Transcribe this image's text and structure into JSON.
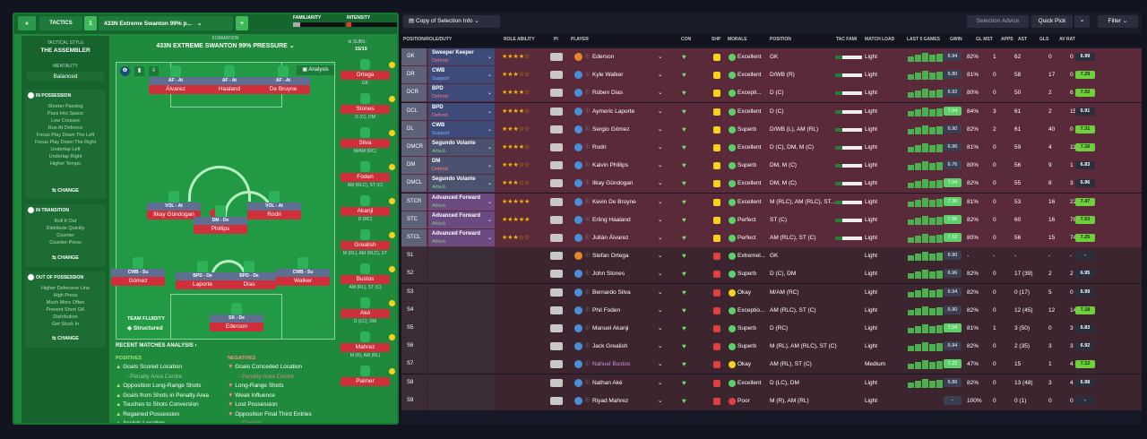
{
  "topbar": {
    "back_icon": "«",
    "tactics_label": "TACTICS",
    "tactic_number": "1",
    "tactic_name": "433N Extreme Swanton 99% p...",
    "add_label": "+",
    "familiarity_label": "FAMILIARITY",
    "intensity_label": "INTENSITY"
  },
  "sidebar": {
    "tactical_style_label": "TACTICAL STYLE",
    "style_value": "THE ASSEMBLER",
    "mentality_label": "MENTALITY",
    "mentality_value": "Balanced",
    "in_possession": {
      "title": "IN POSSESSION",
      "items": [
        "Shorter Passing",
        "Pass Into Space",
        "Low Crosses",
        "Run At Defence",
        "Focus Play Down The Left",
        "Focus Play Down The Right",
        "Underlap Left",
        "Underlap Right",
        "Higher Tempo"
      ],
      "change": "CHANGE"
    },
    "in_transition": {
      "title": "IN TRANSITION",
      "items": [
        "Roll It Out",
        "Distribute Quickly",
        "Counter",
        "Counter-Press"
      ],
      "change": "CHANGE"
    },
    "out_of_possession": {
      "title": "OUT OF POSSESSION",
      "items": [
        "Higher Defensive Line",
        "High Press",
        "Much More Often",
        "Prevent Short GK",
        "Distribution",
        "Get Stuck In"
      ],
      "change": "CHANGE"
    }
  },
  "formation": {
    "label": "FORMATION",
    "name": "433N EXTREME SWANTON 99% PRESSURE",
    "subs_label": "SUBS:",
    "subs_value": "15/15",
    "analysis_label": "Analysis",
    "team_fluidity_label": "TEAM FLUIDITY",
    "team_fluidity_value": "Structured",
    "players": [
      {
        "role": "AF - At",
        "name": "Álvarez"
      },
      {
        "role": "AF - At",
        "name": "Haaland"
      },
      {
        "role": "AF - At",
        "name": "De Bruyne"
      },
      {
        "role": "VOL - At",
        "name": "Ilkay Gündogan"
      },
      {
        "role": "DM - De",
        "name": "Phillips"
      },
      {
        "role": "VOL - At",
        "name": "Rodri"
      },
      {
        "role": "CWB - Su",
        "name": "Gómez"
      },
      {
        "role": "BPD - De",
        "name": "Laporte"
      },
      {
        "role": "BPD - De",
        "name": "Dias"
      },
      {
        "role": "CWB - Su",
        "name": "Walker"
      },
      {
        "role": "SK - De",
        "name": "Ederson"
      }
    ],
    "subs": [
      {
        "name": "Ortega",
        "pos": "GK"
      },
      {
        "name": "Stones",
        "pos": "D (C), DM"
      },
      {
        "name": "Silva",
        "pos": "M/AM (RC)"
      },
      {
        "name": "Foden",
        "pos": "AM (RLC), ST (C)"
      },
      {
        "name": "Akanji",
        "pos": "D (RC)"
      },
      {
        "name": "Grealish",
        "pos": "M (RL), AM (RLC), ST"
      },
      {
        "name": "Bustos",
        "pos": "AM (RL), ST (C)"
      },
      {
        "name": "Aké",
        "pos": "D (LC), DM"
      },
      {
        "name": "Mahrez",
        "pos": "M (R), AM (RL)"
      },
      {
        "name": "Palmer",
        "pos": ""
      }
    ]
  },
  "analysis": {
    "title": "RECENT MATCHES ANALYSIS ›",
    "positives_label": "POSITIVES",
    "negatives_label": "NEGATIVES",
    "positives": [
      "Goals Scored Location",
      "- Penalty Area Centre",
      "Opposition Long-Range Shots",
      "Goals from Shots in Penalty Area",
      "Touches to Shots Conversion",
      "Regained Possession",
      "Assists Location"
    ],
    "negatives": [
      "Goals Conceded Location",
      "- Penalty Area Centre",
      "Long-Range Shots",
      "Weak Influence",
      "Lost Possession",
      "Opposition Final Third Entries",
      "- Central"
    ]
  },
  "right_top": {
    "copy_label": "Copy of Selection Info",
    "selection_advice": "Selection Advice",
    "quick_pick": "Quick Pick",
    "filter": "Filter"
  },
  "columns": [
    "POSITION/ROLE/DUTY",
    "ROLE ABILITY",
    "PI",
    "PLAYER",
    "CON",
    "SHP",
    "MORALE",
    "POSITION",
    "TAC FAMI",
    "MATCH LOAD",
    "LAST 5 GAMES",
    "GWIN",
    "GL MST",
    "APPS",
    "AST",
    "GLS",
    "AV RAT"
  ],
  "rows": [
    {
      "pos": "GK",
      "role": "Sweeper Keeper",
      "duty": "Defend",
      "stars": "★★★★☆",
      "player": "Ederson",
      "morale": "Excellent",
      "position": "GK",
      "load": "Light",
      "last": "6.94",
      "gwin": "82%",
      "glmst": "1",
      "apps": "62",
      "ast": "0",
      "gls": "0",
      "av": "6.99"
    },
    {
      "pos": "DR",
      "role": "CWB",
      "duty": "Support",
      "stars": "★★★☆☆",
      "player": "Kyle Walker",
      "morale": "Excellent",
      "position": "D/WB (R)",
      "load": "Light",
      "last": "6.80",
      "gwin": "81%",
      "glmst": "0",
      "apps": "58",
      "ast": "17",
      "gls": "0",
      "av": "7.29"
    },
    {
      "pos": "DCR",
      "role": "BPD",
      "duty": "Defend",
      "stars": "★★★★☆",
      "player": "Rúben Dias",
      "morale": "Excepti...",
      "position": "D (C)",
      "load": "Light",
      "last": "6.92",
      "gwin": "80%",
      "glmst": "0",
      "apps": "50",
      "ast": "2",
      "gls": "6",
      "av": "7.02"
    },
    {
      "pos": "DCL",
      "role": "BPD",
      "duty": "Defend",
      "stars": "★★★★☆",
      "player": "Aymeric Laporte",
      "morale": "Excellent",
      "position": "D (C)",
      "load": "Light",
      "last": "7.04",
      "gwin": "84%",
      "glmst": "3",
      "apps": "61",
      "ast": "2",
      "gls": "15",
      "av": "6.91"
    },
    {
      "pos": "DL",
      "role": "CWB",
      "duty": "Support",
      "stars": "★★★☆☆",
      "player": "Sergio Gómez",
      "morale": "Superb",
      "position": "D/WB (L), AM (RL)",
      "load": "Light",
      "last": "6.90",
      "gwin": "82%",
      "glmst": "2",
      "apps": "61",
      "ast": "40",
      "gls": "0",
      "av": "7.31"
    },
    {
      "pos": "DMCR",
      "role": "Segundo Volante",
      "duty": "Attack",
      "stars": "★★★★☆",
      "player": "Rodri",
      "morale": "Excellent",
      "position": "D (C), DM, M (C)",
      "load": "Light",
      "last": "6.96",
      "gwin": "81%",
      "glmst": "0",
      "apps": "59",
      "ast": "4",
      "gls": "11",
      "av": "7.16"
    },
    {
      "pos": "DM",
      "role": "DM",
      "duty": "Defend",
      "stars": "★★★☆☆",
      "player": "Kalvin Phillips",
      "morale": "Superb",
      "position": "DM, M (C)",
      "load": "Light",
      "last": "6.76",
      "gwin": "80%",
      "glmst": "0",
      "apps": "56",
      "ast": "9",
      "gls": "1",
      "av": "6.83"
    },
    {
      "pos": "DMCL",
      "role": "Segundo Volante",
      "duty": "Attack",
      "stars": "★★★☆☆",
      "player": "Ilkay Gündogan",
      "morale": "Excellent",
      "position": "DM, M (C)",
      "load": "Light",
      "last": "7.04",
      "gwin": "82%",
      "glmst": "0",
      "apps": "55",
      "ast": "8",
      "gls": "3",
      "av": "6.96"
    },
    {
      "pos": "STCR",
      "role": "Advanced Forward",
      "duty": "Attack",
      "stars": "★★★★★",
      "player": "Kevin De Bruyne",
      "morale": "Excellent",
      "position": "M (RLC), AM (RLC), ST...",
      "load": "Light",
      "last": "7.30",
      "gwin": "81%",
      "glmst": "0",
      "apps": "53",
      "ast": "16",
      "gls": "22",
      "av": "7.47"
    },
    {
      "pos": "STC",
      "role": "Advanced Forward",
      "duty": "Attack",
      "stars": "★★★★★",
      "player": "Erling Haaland",
      "morale": "Perfect",
      "position": "ST (C)",
      "load": "Light",
      "last": "7.66",
      "gwin": "82%",
      "glmst": "0",
      "apps": "60",
      "ast": "16",
      "gls": "78",
      "av": "7.63"
    },
    {
      "pos": "STCL",
      "role": "Advanced Forward",
      "duty": "Attack",
      "stars": "★★★☆☆",
      "player": "Julián Álvarez",
      "morale": "Perfect",
      "position": "AM (RLC), ST (C)",
      "load": "Light",
      "last": "7.12",
      "gwin": "80%",
      "glmst": "0",
      "apps": "56",
      "ast": "15",
      "gls": "74",
      "av": "7.25"
    },
    {
      "pos": "S1",
      "role": "",
      "duty": "",
      "stars": "",
      "player": "Stefan Ortega",
      "morale": "Extremel...",
      "position": "GK",
      "load": "Light",
      "last": "6.90",
      "gwin": "-",
      "glmst": "-",
      "apps": "-",
      "ast": "-",
      "gls": "-",
      "av": "-"
    },
    {
      "pos": "S2",
      "role": "",
      "duty": "",
      "stars": "",
      "player": "John Stones",
      "morale": "Superb",
      "position": "D (C), DM",
      "load": "Light",
      "last": "6.96",
      "gwin": "82%",
      "glmst": "0",
      "apps": "17 (39)",
      "ast": "2",
      "gls": "2",
      "av": "6.95"
    },
    {
      "pos": "S3",
      "role": "",
      "duty": "",
      "stars": "",
      "player": "Bernardo Silva",
      "morale": "Okay",
      "position": "M/AM (RC)",
      "load": "Light",
      "last": "6.94",
      "gwin": "82%",
      "glmst": "0",
      "apps": "0 (17)",
      "ast": "5",
      "gls": "0",
      "av": "6.99"
    },
    {
      "pos": "S4",
      "role": "",
      "duty": "",
      "stars": "",
      "player": "Phil Foden",
      "morale": "Exceptio...",
      "position": "AM (RLC), ST (C)",
      "load": "Light",
      "last": "6.90",
      "gwin": "82%",
      "glmst": "0",
      "apps": "12 (45)",
      "ast": "12",
      "gls": "14",
      "av": "7.18"
    },
    {
      "pos": "S5",
      "role": "",
      "duty": "",
      "stars": "",
      "player": "Manuel Akanji",
      "morale": "Superb",
      "position": "D (RC)",
      "load": "Light",
      "last": "7.04",
      "gwin": "81%",
      "glmst": "1",
      "apps": "3 (50)",
      "ast": "0",
      "gls": "3",
      "av": "6.83"
    },
    {
      "pos": "S6",
      "role": "",
      "duty": "",
      "stars": "",
      "player": "Jack Grealish",
      "morale": "Superb",
      "position": "M (RL), AM (RLC), ST (C)",
      "load": "Light",
      "last": "6.94",
      "gwin": "82%",
      "glmst": "0",
      "apps": "2 (35)",
      "ast": "3",
      "gls": "3",
      "av": "6.92"
    },
    {
      "pos": "S7",
      "role": "",
      "duty": "",
      "stars": "",
      "player": "Nahuel Bustos",
      "morale": "Okay",
      "position": "AM (RL), ST (C)",
      "load": "Medium",
      "last": "7.22",
      "gwin": "47%",
      "glmst": "0",
      "apps": "15",
      "ast": "1",
      "gls": "4",
      "av": "7.12"
    },
    {
      "pos": "S8",
      "role": "",
      "duty": "",
      "stars": "",
      "player": "Nathan Aké",
      "morale": "Excellent",
      "position": "D (LC), DM",
      "load": "Light",
      "last": "6.86",
      "gwin": "82%",
      "glmst": "0",
      "apps": "13 (48)",
      "ast": "3",
      "gls": "4",
      "av": "6.98"
    },
    {
      "pos": "S9",
      "role": "",
      "duty": "",
      "stars": "",
      "player": "Riyad Mahrez",
      "morale": "Poor",
      "position": "M (R), AM (RL)",
      "load": "Light",
      "last": "-",
      "gwin": "100%",
      "glmst": "0",
      "apps": "0 (1)",
      "ast": "0",
      "gls": "0",
      "av": "-"
    }
  ]
}
